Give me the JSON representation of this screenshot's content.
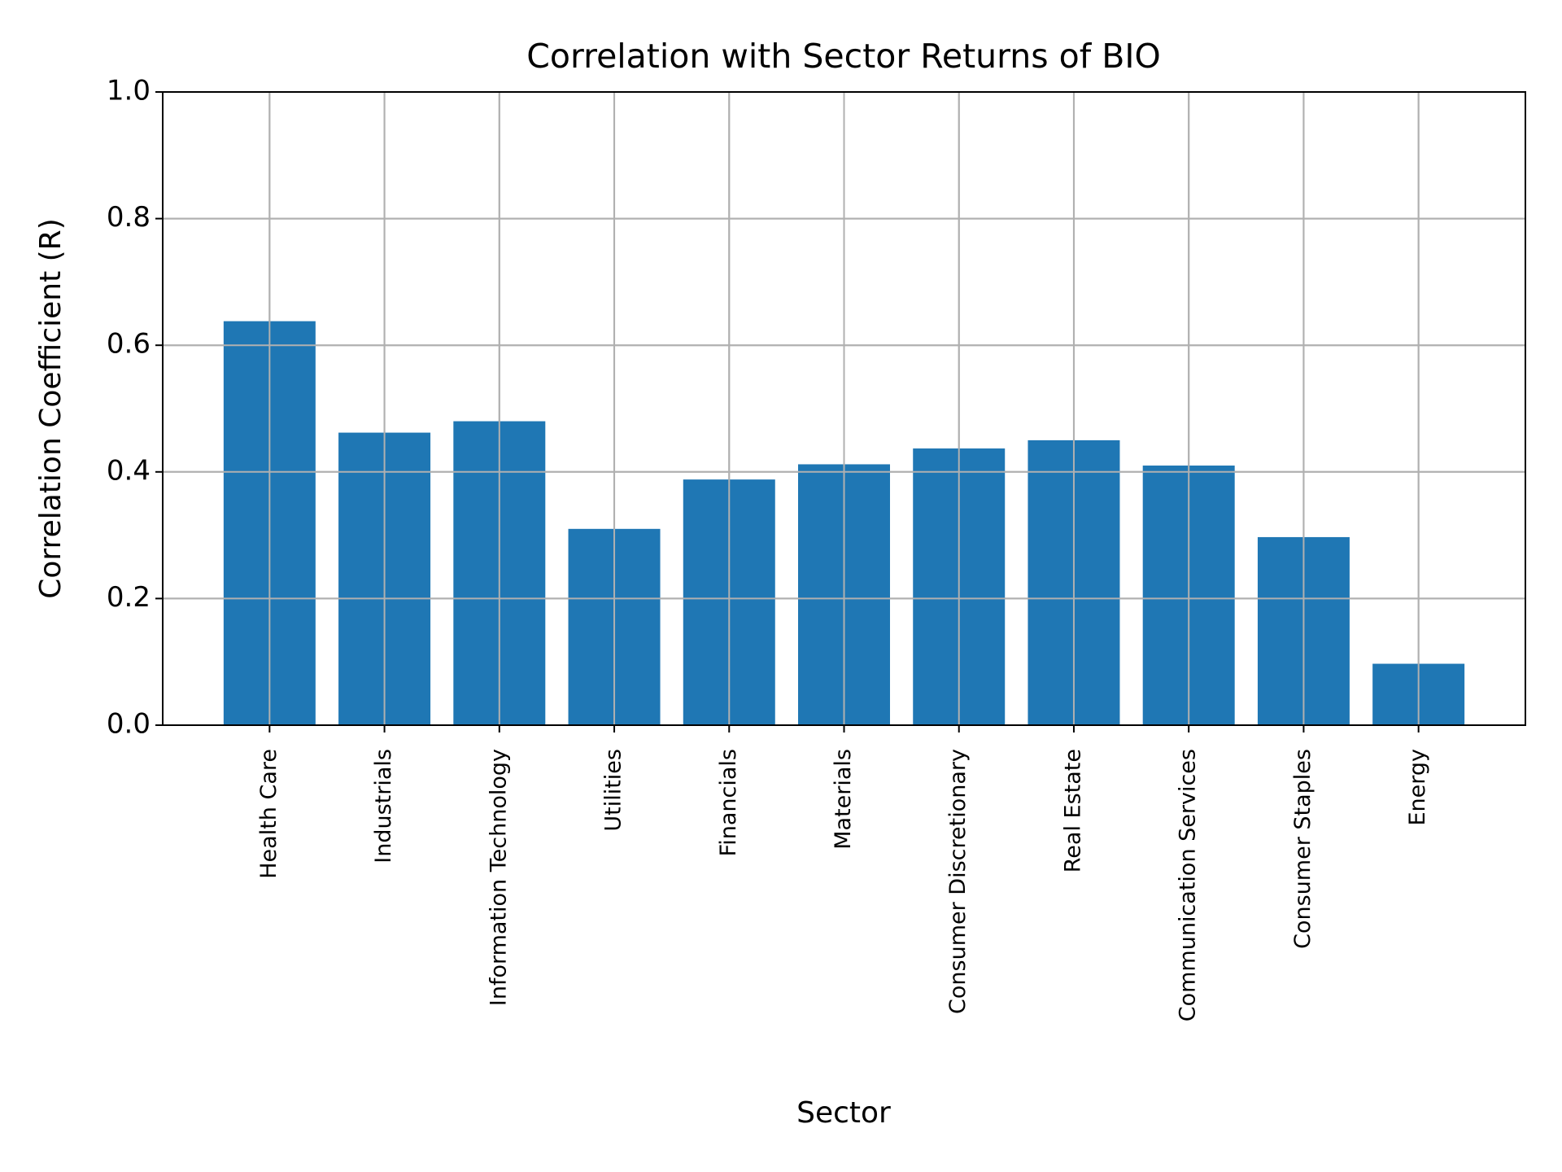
{
  "chart_data": {
    "type": "bar",
    "title": "Correlation with Sector Returns of BIO",
    "x_label": "Sector",
    "y_label": "Correlation Coefficient (R)",
    "categories": [
      "Health Care",
      "Industrials",
      "Information Technology",
      "Utilities",
      "Financials",
      "Materials",
      "Consumer Discretionary",
      "Real Estate",
      "Communication Services",
      "Consumer Staples",
      "Energy"
    ],
    "values": [
      0.638,
      0.462,
      0.48,
      0.31,
      0.388,
      0.412,
      0.437,
      0.45,
      0.41,
      0.297,
      0.097
    ],
    "color": "#1f77b4",
    "ylim": [
      0,
      1
    ],
    "yticks": [
      {
        "value": 0,
        "label": "0.0"
      },
      {
        "value": 0.2,
        "label": "0.2"
      },
      {
        "value": 0.4,
        "label": "0.4"
      },
      {
        "value": 0.6,
        "label": "0.6"
      },
      {
        "value": 0.8,
        "label": "0.8"
      },
      {
        "value": 1,
        "label": "1.0"
      }
    ],
    "grid": true
  }
}
